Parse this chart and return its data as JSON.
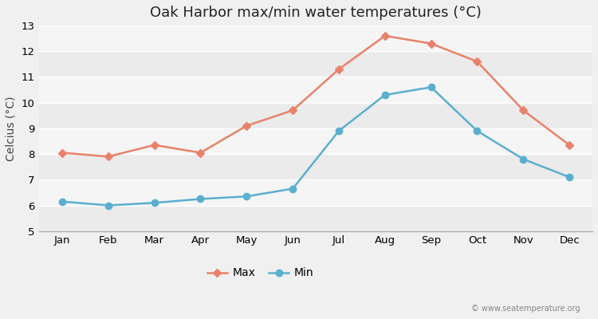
{
  "title": "Oak Harbor max/min water temperatures (°C)",
  "ylabel": "Celcius (°C)",
  "months": [
    "Jan",
    "Feb",
    "Mar",
    "Apr",
    "May",
    "Jun",
    "Jul",
    "Aug",
    "Sep",
    "Oct",
    "Nov",
    "Dec"
  ],
  "max_values": [
    8.05,
    7.9,
    8.35,
    8.05,
    9.1,
    9.7,
    11.3,
    12.6,
    12.3,
    11.6,
    9.7,
    8.35
  ],
  "min_values": [
    6.15,
    6.0,
    6.1,
    6.25,
    6.35,
    6.65,
    8.9,
    10.3,
    10.6,
    8.9,
    7.8,
    7.1
  ],
  "max_color": "#e8826a",
  "min_color": "#5aafcf",
  "ylim": [
    5,
    13
  ],
  "yticks": [
    5,
    6,
    7,
    8,
    9,
    10,
    11,
    12,
    13
  ],
  "band_colors": [
    "#ebebeb",
    "#f5f5f5"
  ],
  "outer_bg": "#f0f0f0",
  "legend_labels": [
    "Max",
    "Min"
  ],
  "watermark": "© www.seatemperature.org",
  "title_fontsize": 13,
  "axis_label_fontsize": 10,
  "tick_fontsize": 9.5
}
